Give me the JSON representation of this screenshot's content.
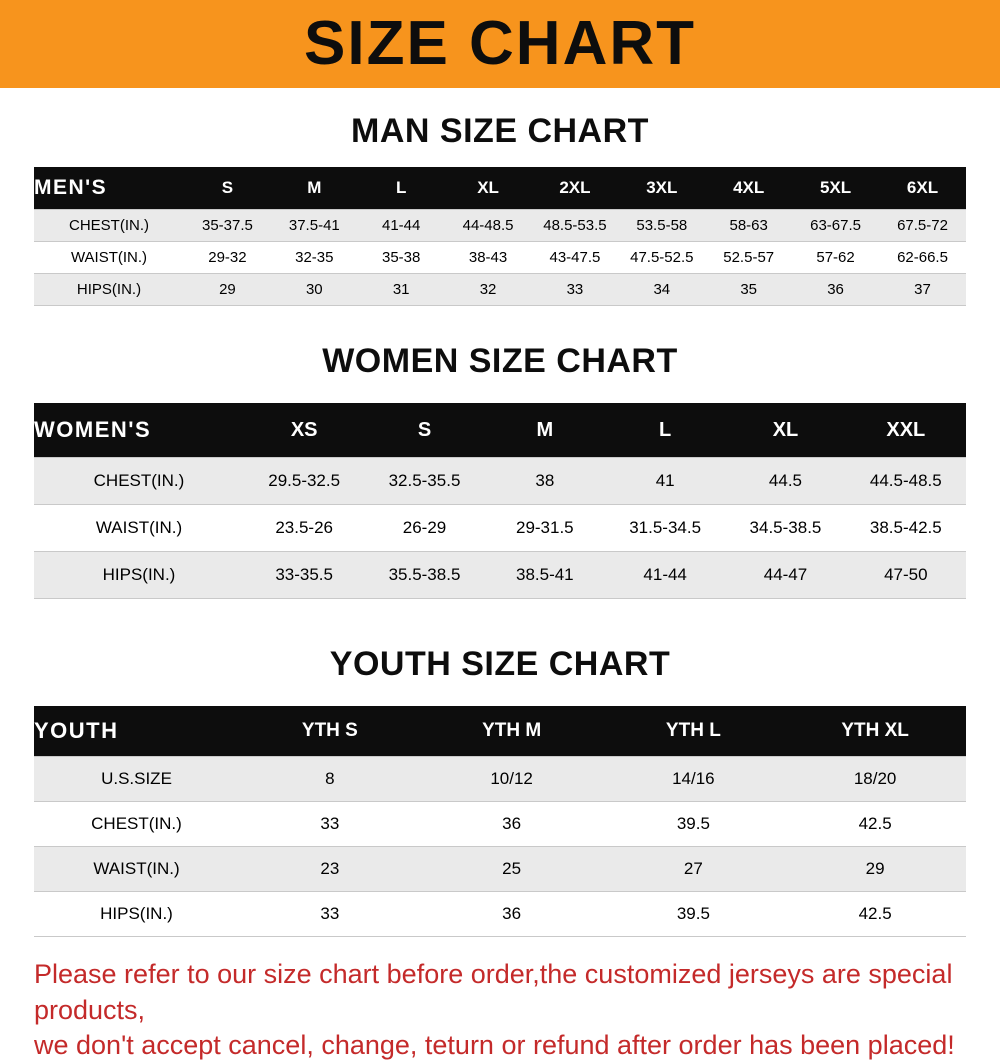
{
  "banner": {
    "title": "SIZE CHART",
    "bg_color": "#F7941D"
  },
  "chart_data": [
    {
      "type": "table",
      "id": "men",
      "title": "MAN SIZE CHART",
      "row_header": "MEN'S",
      "columns": [
        "S",
        "M",
        "L",
        "XL",
        "2XL",
        "3XL",
        "4XL",
        "5XL",
        "6XL"
      ],
      "rows": [
        {
          "label": "CHEST(IN.)",
          "values": [
            "35-37.5",
            "37.5-41",
            "41-44",
            "44-48.5",
            "48.5-53.5",
            "53.5-58",
            "58-63",
            "63-67.5",
            "67.5-72"
          ]
        },
        {
          "label": "WAIST(IN.)",
          "values": [
            "29-32",
            "32-35",
            "35-38",
            "38-43",
            "43-47.5",
            "47.5-52.5",
            "52.5-57",
            "57-62",
            "62-66.5"
          ]
        },
        {
          "label": "HIPS(IN.)",
          "values": [
            "29",
            "30",
            "31",
            "32",
            "33",
            "34",
            "35",
            "36",
            "37"
          ]
        }
      ]
    },
    {
      "type": "table",
      "id": "women",
      "title": "WOMEN SIZE CHART",
      "row_header": "WOMEN'S",
      "columns": [
        "XS",
        "S",
        "M",
        "L",
        "XL",
        "XXL"
      ],
      "rows": [
        {
          "label": "CHEST(IN.)",
          "values": [
            "29.5-32.5",
            "32.5-35.5",
            "38",
            "41",
            "44.5",
            "44.5-48.5"
          ]
        },
        {
          "label": "WAIST(IN.)",
          "values": [
            "23.5-26",
            "26-29",
            "29-31.5",
            "31.5-34.5",
            "34.5-38.5",
            "38.5-42.5"
          ]
        },
        {
          "label": "HIPS(IN.)",
          "values": [
            "33-35.5",
            "35.5-38.5",
            "38.5-41",
            "41-44",
            "44-47",
            "47-50"
          ]
        }
      ]
    },
    {
      "type": "table",
      "id": "youth",
      "title": "YOUTH SIZE CHART",
      "row_header": "YOUTH",
      "columns": [
        "YTH S",
        "YTH M",
        "YTH L",
        "YTH XL"
      ],
      "rows": [
        {
          "label": "U.S.SIZE",
          "values": [
            "8",
            "10/12",
            "14/16",
            "18/20"
          ]
        },
        {
          "label": "CHEST(IN.)",
          "values": [
            "33",
            "36",
            "39.5",
            "42.5"
          ]
        },
        {
          "label": "WAIST(IN.)",
          "values": [
            "23",
            "25",
            "27",
            "29"
          ]
        },
        {
          "label": "HIPS(IN.)",
          "values": [
            "33",
            "36",
            "39.5",
            "42.5"
          ]
        }
      ]
    }
  ],
  "footer": {
    "lines": [
      "Please refer to our size chart before order,the customized jerseys are special products,",
      "we don't accept cancel, change, teturn or refund after order has been placed!"
    ],
    "color": "#C42A2A"
  }
}
